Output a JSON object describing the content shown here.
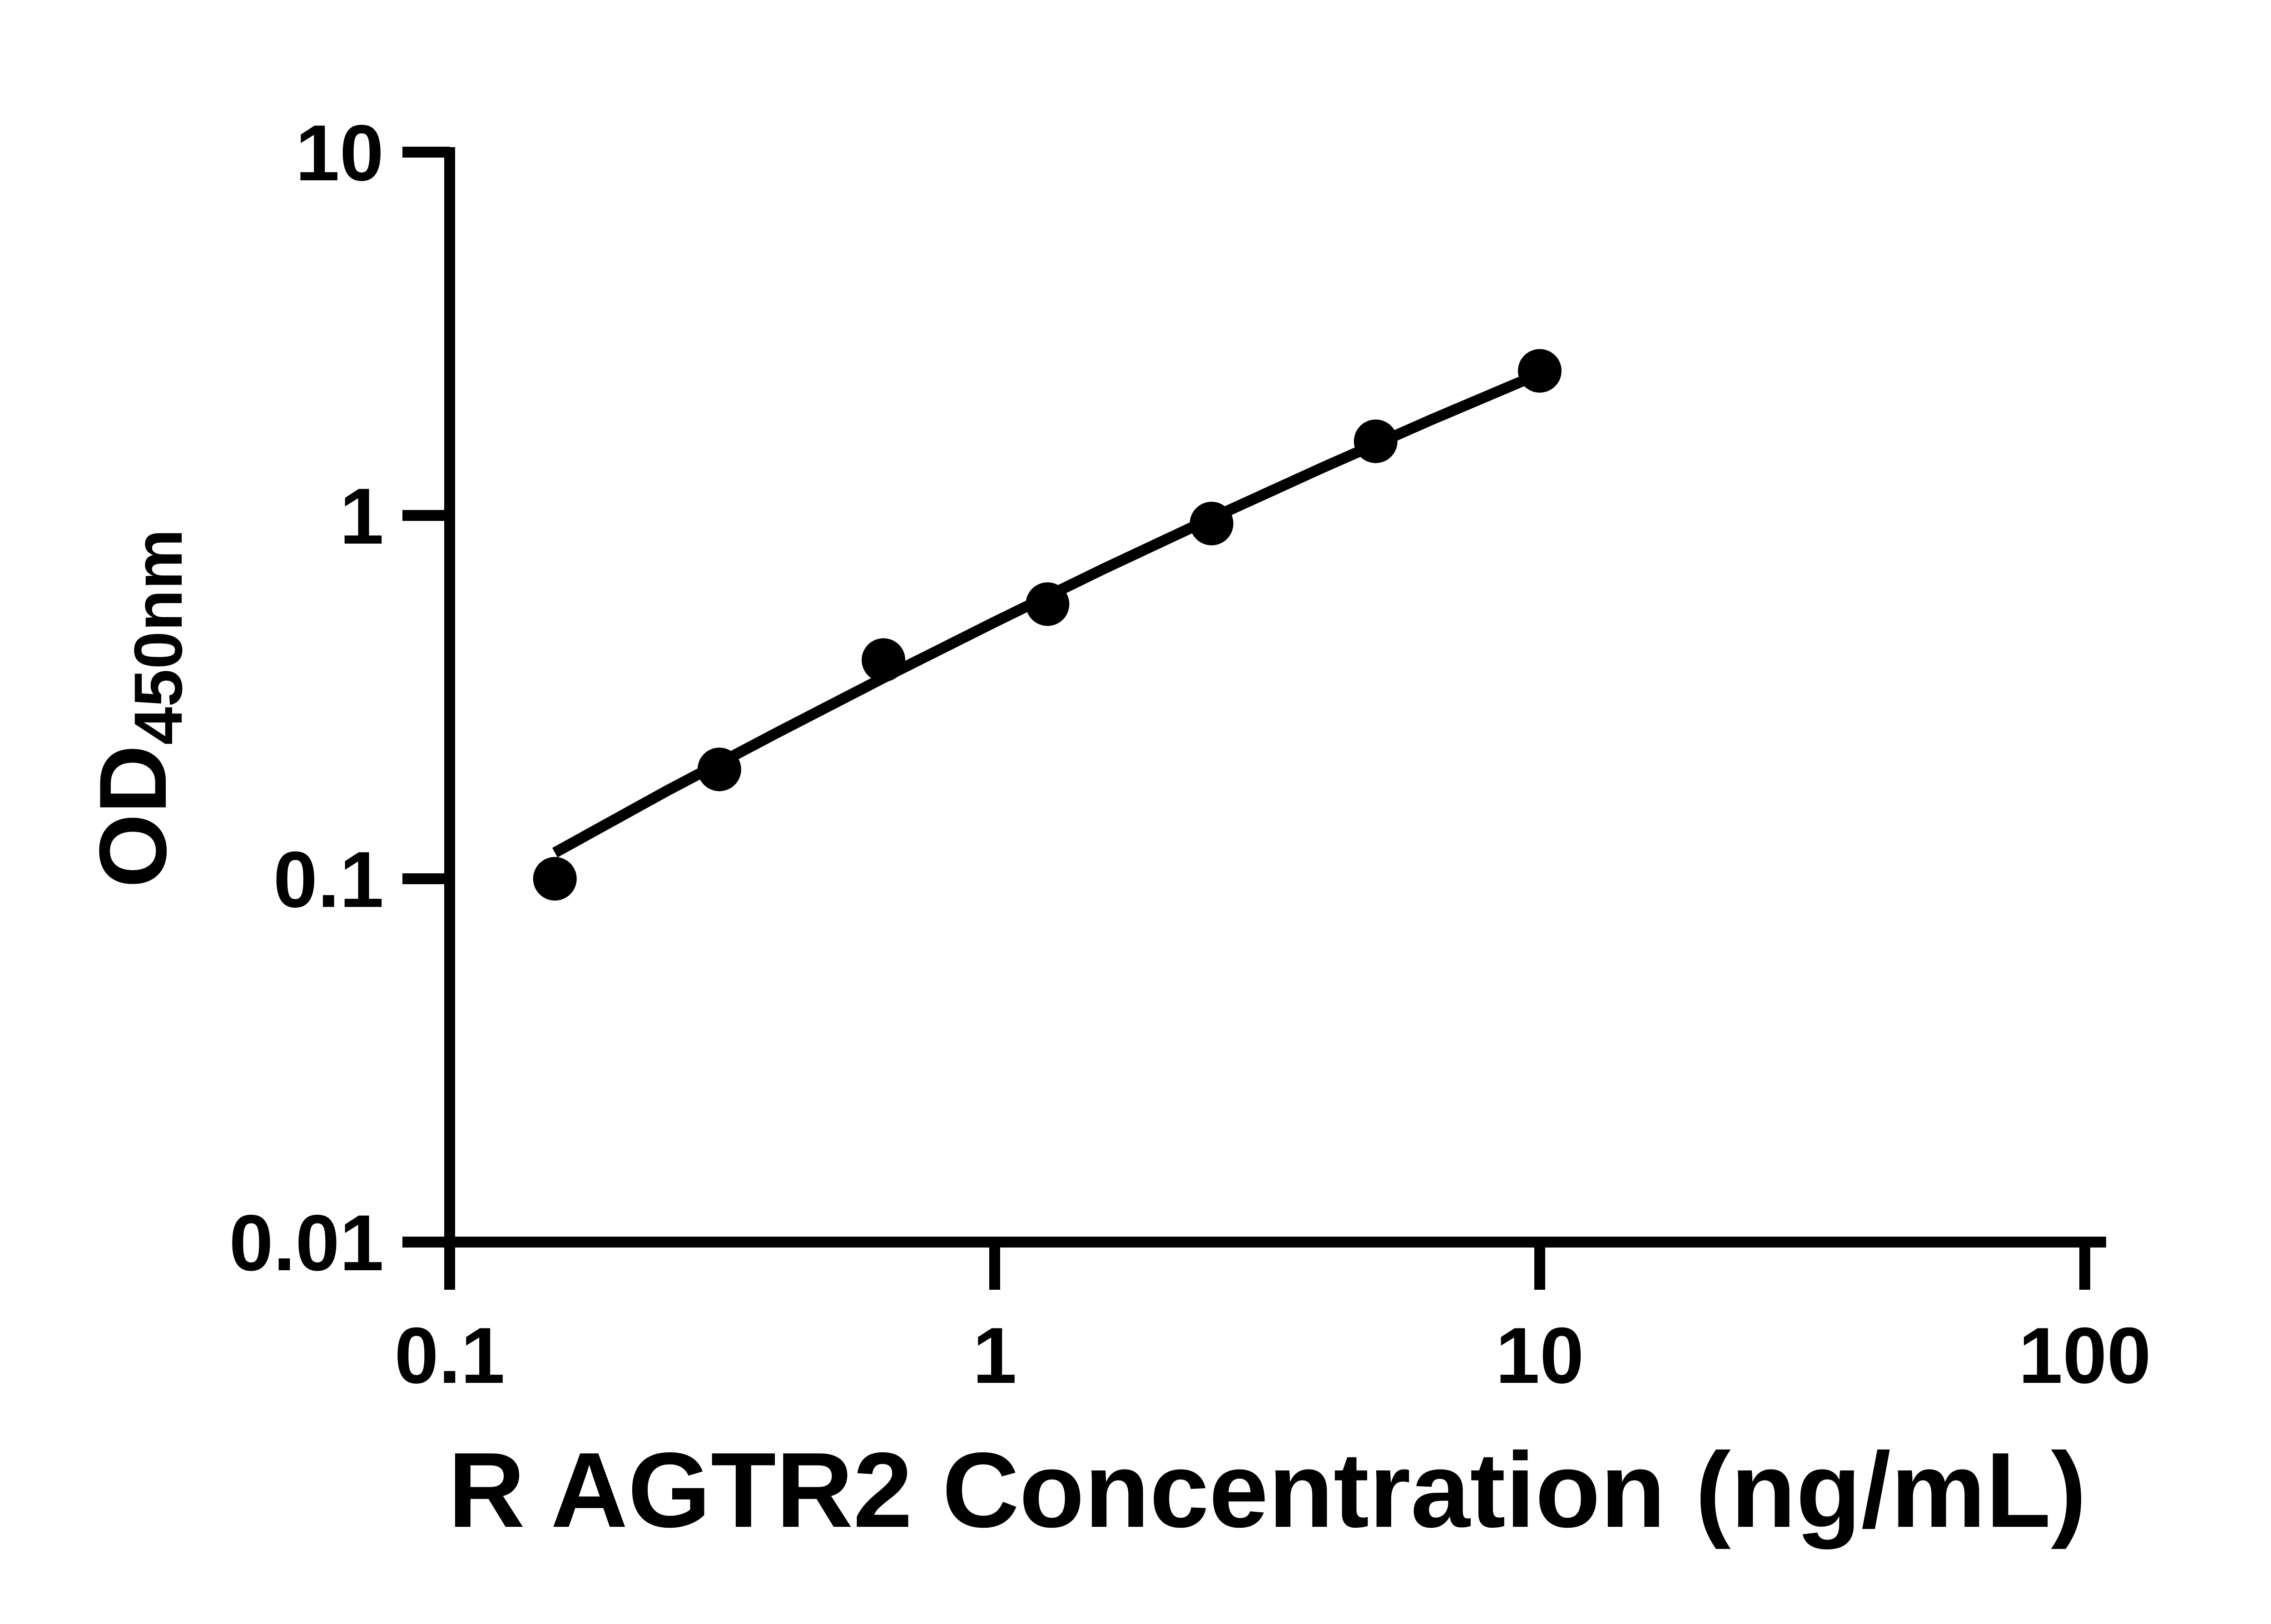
{
  "chart_data": {
    "type": "scatter",
    "title": "",
    "xlabel": "R AGTR2 Concentration (ng/mL)",
    "ylabel_base": "OD",
    "ylabel_subscript": "450nm",
    "x_scale": "log",
    "y_scale": "log",
    "xlim": [
      0.1,
      100
    ],
    "ylim": [
      0.01,
      10
    ],
    "x_ticks": [
      "0.1",
      "1",
      "10",
      "100"
    ],
    "y_ticks": [
      "10",
      "1",
      "0.1",
      "0.01"
    ],
    "grid": false,
    "legend": null,
    "marker_shape": "filled-circle",
    "marker_color": "#000000",
    "line_color": "#000000",
    "axis_color": "#000000",
    "background_color": "#ffffff",
    "points": {
      "x": [
        0.156,
        0.3125,
        0.625,
        1.25,
        2.5,
        5,
        10
      ],
      "y": [
        0.1,
        0.2,
        0.4,
        0.57,
        0.95,
        1.6,
        2.5
      ]
    },
    "fit_line": {
      "x": [
        0.156,
        0.251,
        0.398,
        0.631,
        1.0,
        1.585,
        2.512,
        3.981,
        6.31,
        10
      ],
      "y": [
        0.118,
        0.175,
        0.252,
        0.36,
        0.509,
        0.713,
        0.986,
        1.351,
        1.831,
        2.455
      ]
    }
  }
}
